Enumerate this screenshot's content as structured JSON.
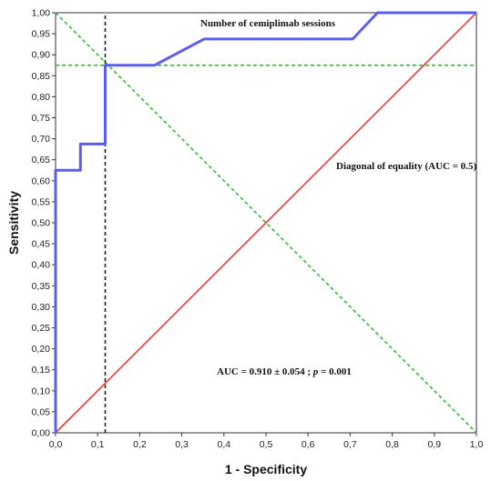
{
  "chart_data": {
    "type": "line",
    "xlabel": "1 - Specificity",
    "ylabel": "Sensitivity",
    "xlim": [
      0,
      1
    ],
    "ylim": [
      0,
      1
    ],
    "x_ticks": [
      "0,0",
      "0,1",
      "0,2",
      "0,3",
      "0,4",
      "0,5",
      "0,6",
      "0,7",
      "0,8",
      "0,9",
      "1,0"
    ],
    "y_ticks": [
      "0,00",
      "0,05",
      "0,10",
      "0,15",
      "0,20",
      "0,25",
      "0,30",
      "0,35",
      "0,40",
      "0,45",
      "0,50",
      "0,55",
      "0,60",
      "0,65",
      "0,70",
      "0,75",
      "0,80",
      "0,85",
      "0,90",
      "0,95",
      "1,00"
    ],
    "grid": false,
    "series": [
      {
        "name": "Number of cemiplimab sessions",
        "color": "#5b5ef0",
        "style": "solid",
        "x": [
          0,
          0,
          0.059,
          0.059,
          0.118,
          0.118,
          0.235,
          0.353,
          0.706,
          0.765,
          1.0
        ],
        "y": [
          0,
          0.625,
          0.625,
          0.6875,
          0.6875,
          0.875,
          0.875,
          0.9375,
          0.9375,
          1.0,
          1.0
        ]
      },
      {
        "name": "Diagonal of equality (AUC = 0.5)",
        "color": "#e83a3a",
        "style": "solid",
        "x": [
          0,
          1
        ],
        "y": [
          0,
          1
        ]
      },
      {
        "color": "#3cb83c",
        "style": "dashed",
        "x": [
          0,
          1
        ],
        "y": [
          1,
          0
        ]
      },
      {
        "color": "#3cb83c",
        "style": "dashed",
        "x": [
          0,
          1
        ],
        "y": [
          0.875,
          0.875
        ]
      },
      {
        "color": "#222222",
        "style": "dashed",
        "x": [
          0.118,
          0.118
        ],
        "y": [
          0,
          1
        ]
      }
    ],
    "annotations": {
      "curve_label": "Number of cemiplimab sessions",
      "diagonal_label": "Diagonal of equality (AUC = 0.5)",
      "auc_prefix": "AUC = 0.910 ± 0.054 ; ",
      "auc_p": "p",
      "auc_suffix": " = 0.001"
    }
  }
}
